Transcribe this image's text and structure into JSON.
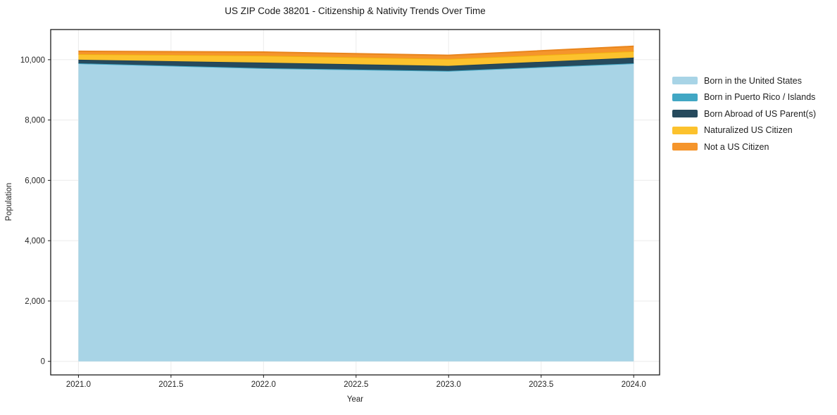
{
  "title": "US ZIP Code 38201 - Citizenship & Nativity Trends Over Time",
  "chart_data": {
    "type": "area",
    "stacked": true,
    "title": "US ZIP Code 38201 - Citizenship & Nativity Trends Over Time",
    "xlabel": "Year",
    "ylabel": "Population",
    "x": [
      2021,
      2022,
      2023,
      2024
    ],
    "series": [
      {
        "name": "Born in the United States",
        "values": [
          9880,
          9720,
          9630,
          9880
        ],
        "color": "#a8d4e6",
        "line_color": "#8fc2d9"
      },
      {
        "name": "Born in Puerto Rico / Islands",
        "values": [
          0,
          0,
          0,
          0
        ],
        "color": "#41a7c4",
        "line_color": "#41a7c4"
      },
      {
        "name": "Born Abroad of US Parent(s)",
        "values": [
          120,
          185,
          165,
          190
        ],
        "color": "#264a5d",
        "line_color": "#1f4052"
      },
      {
        "name": "Naturalized US Citizen",
        "values": [
          185,
          230,
          230,
          210
        ],
        "color": "#fcc22d",
        "line_color": "#f2af0e"
      },
      {
        "name": "Not a US Citizen",
        "values": [
          95,
          120,
          120,
          165
        ],
        "color": "#f5952c",
        "line_color": "#e9851c"
      }
    ],
    "x_ticks": [
      "2021.0",
      "2021.5",
      "2022.0",
      "2022.5",
      "2023.0",
      "2023.5",
      "2024.0"
    ],
    "x_tick_values": [
      2021,
      2021.5,
      2022,
      2022.5,
      2023,
      2023.5,
      2024
    ],
    "y_ticks": [
      "0",
      "2,000",
      "4,000",
      "6,000",
      "8,000",
      "10,000"
    ],
    "y_tick_values": [
      0,
      2000,
      4000,
      6000,
      8000,
      10000
    ],
    "xlim": [
      2020.85,
      2024.14
    ],
    "ylim": [
      -450,
      11000
    ],
    "grid": true,
    "grid_color": "#ebebeb",
    "frame_color": "#1a1a1a",
    "tick_label_color": "#262626",
    "legend_position": "right"
  }
}
